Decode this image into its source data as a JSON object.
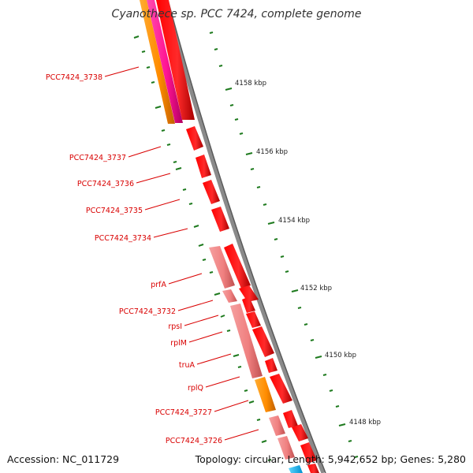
{
  "title": "Cyanothece sp. PCC 7424, complete genome",
  "footer": {
    "accession": "Accession: NC_011729",
    "topology": "Topology: circular; Length: 5,942,652 bp; Genes: 5,280"
  },
  "colors": {
    "gene_label": "#d90000",
    "backbone": "#8a8a8a",
    "tick": "#1e7a1e",
    "gene_red": "#ff0000",
    "gene_pink": "#f08080",
    "gene_orange": "#ff8c00",
    "gene_magenta": "#ff1493",
    "gene_cyan": "#00bfff"
  },
  "scale_labels": [
    "4158 kbp",
    "4156 kbp",
    "4154 kbp",
    "4152 kbp",
    "4150 kbp",
    "4148 kbp"
  ],
  "gene_labels": [
    "PCC7424_3738",
    "PCC7424_3737",
    "PCC7424_3736",
    "PCC7424_3735",
    "PCC7424_3734",
    "prfA",
    "PCC7424_3732",
    "rpsI",
    "rplM",
    "truA",
    "rplQ",
    "PCC7424_3727",
    "PCC7424_3726"
  ]
}
